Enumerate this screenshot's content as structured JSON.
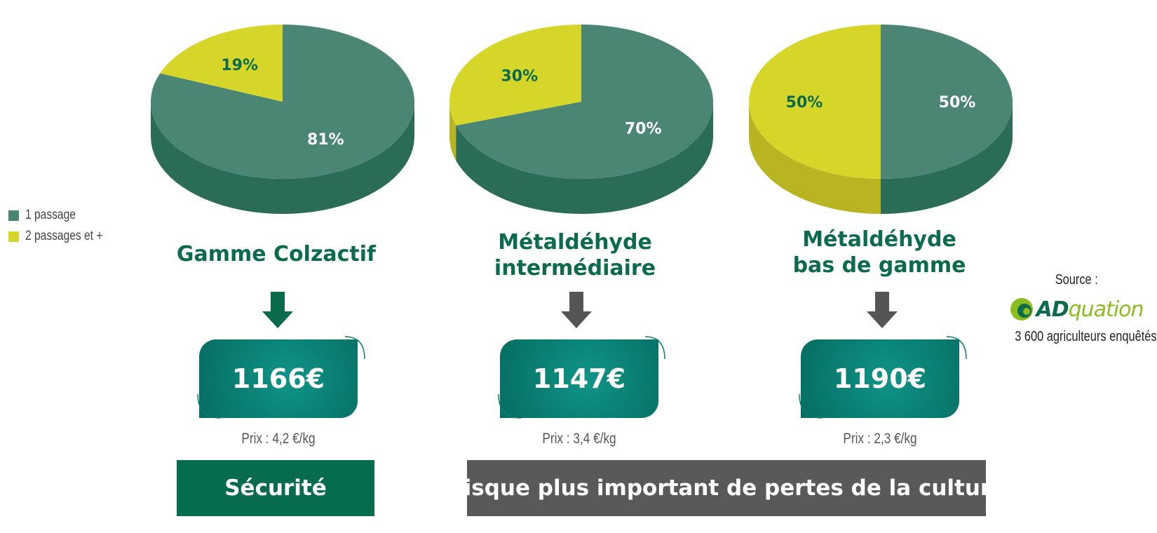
{
  "chart_data": [
    {
      "type": "pie",
      "title": "Gamme Colzactif",
      "slices": [
        {
          "label": "1 passage",
          "value": 81,
          "display": "81%"
        },
        {
          "label": "2 passages et +",
          "value": 19,
          "display": "19%"
        }
      ]
    },
    {
      "type": "pie",
      "title": "Métaldéhyde intermédiaire",
      "slices": [
        {
          "label": "1 passage",
          "value": 70,
          "display": "70%"
        },
        {
          "label": "2 passages et +",
          "value": 30,
          "display": "30%"
        }
      ]
    },
    {
      "type": "pie",
      "title": "Métaldéhyde bas de gamme",
      "slices": [
        {
          "label": "1 passage",
          "value": 50,
          "display": "50%"
        },
        {
          "label": "2 passages et +",
          "value": 50,
          "display": "50%"
        }
      ]
    }
  ],
  "legend": [
    {
      "label": "1 passage",
      "color": "#4a8673"
    },
    {
      "label": "2 passages et +",
      "color": "#d6d62a"
    }
  ],
  "colors": {
    "green_top": "#4a8673",
    "green_side": "#2b6c57",
    "yellow_top": "#d6d62a",
    "yellow_side": "#b9b421",
    "title_green": "#0b6b4c",
    "arrow_green": "#0a6a4c",
    "arrow_grey": "#555555",
    "banner_green": "#066c4d",
    "banner_grey": "#595959"
  },
  "products": [
    {
      "title_line1": "Gamme Colzactif",
      "title_line2": "",
      "cost": "1166€",
      "price_label": "Prix : 4,2 €/kg"
    },
    {
      "title_line1": "Métaldéhyde",
      "title_line2": "intermédiaire",
      "cost": "1147€",
      "price_label": "Prix : 3,4 €/kg"
    },
    {
      "title_line1": "Métaldéhyde",
      "title_line2": "bas de gamme",
      "cost": "1190€",
      "price_label": "Prix : 2,3 €/kg"
    }
  ],
  "banners": {
    "left": "Sécurité",
    "right": "Risque plus important de pertes de la culture"
  },
  "source": {
    "label": "Source :",
    "logo_text_ad": "AD",
    "logo_text_rest": "quation",
    "note": "3 600 agriculteurs enquêtés"
  }
}
